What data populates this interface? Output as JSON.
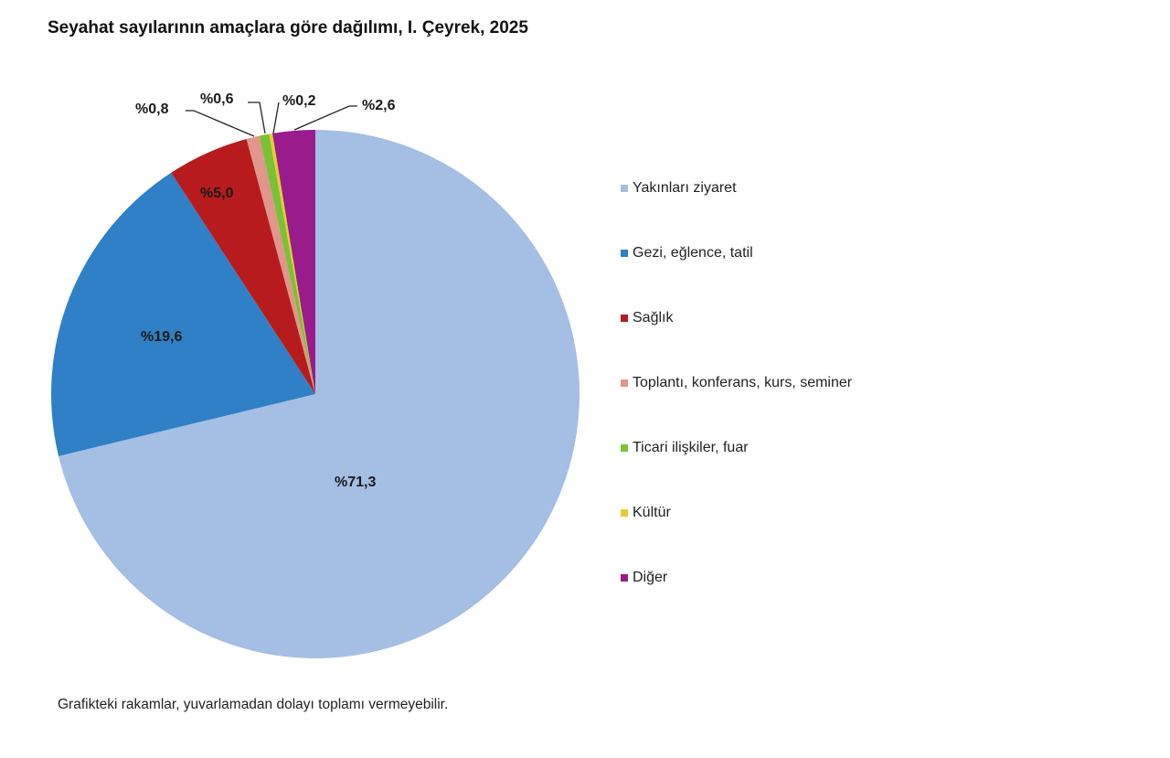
{
  "title": "Seyahat sayılarının amaçlara göre dağılımı, I. Çeyrek, 2025",
  "footnote": "Grafikteki rakamlar, yuvarlamadan dolayı toplamı vermeyebilir.",
  "legend": [
    {
      "label": "Yakınları ziyaret",
      "color": "#A5BEE3"
    },
    {
      "label": "Gezi, eğlence, tatil",
      "color": "#2F80C6"
    },
    {
      "label": "Sağlık",
      "color": "#B81B1E"
    },
    {
      "label": "Toplantı, konferans, kurs, seminer",
      "color": "#E0968A"
    },
    {
      "label": "Ticari ilişkiler, fuar",
      "color": "#79C137"
    },
    {
      "label": "Kültür",
      "color": "#EBCB2B"
    },
    {
      "label": "Diğer",
      "color": "#9A1C8C"
    }
  ],
  "data_labels": {
    "yakinlari": "%71,3",
    "gezi": "%19,6",
    "saglik": "%5,0",
    "toplanti": "%0,8",
    "ticari": "%0,6",
    "kultur": "%0,2",
    "diger": "%2,6"
  },
  "chart_data": {
    "type": "pie",
    "title": "Seyahat sayılarının amaçlara göre dağılımı, I. Çeyrek, 2025",
    "categories": [
      "Yakınları ziyaret",
      "Gezi, eğlence, tatil",
      "Sağlık",
      "Toplantı, konferans, kurs, seminer",
      "Ticari ilişkiler, fuar",
      "Kültür",
      "Diğer"
    ],
    "values": [
      71.3,
      19.6,
      5.0,
      0.8,
      0.6,
      0.2,
      2.6
    ],
    "unit": "%",
    "colors": [
      "#A5BEE3",
      "#2F80C6",
      "#B81B1E",
      "#E0968A",
      "#79C137",
      "#EBCB2B",
      "#9A1C8C"
    ],
    "start_angle": "12 o'clock, clockwise",
    "legend_position": "right",
    "note": "Grafikteki rakamlar, yuvarlamadan dolayı toplamı vermeyebilir."
  }
}
